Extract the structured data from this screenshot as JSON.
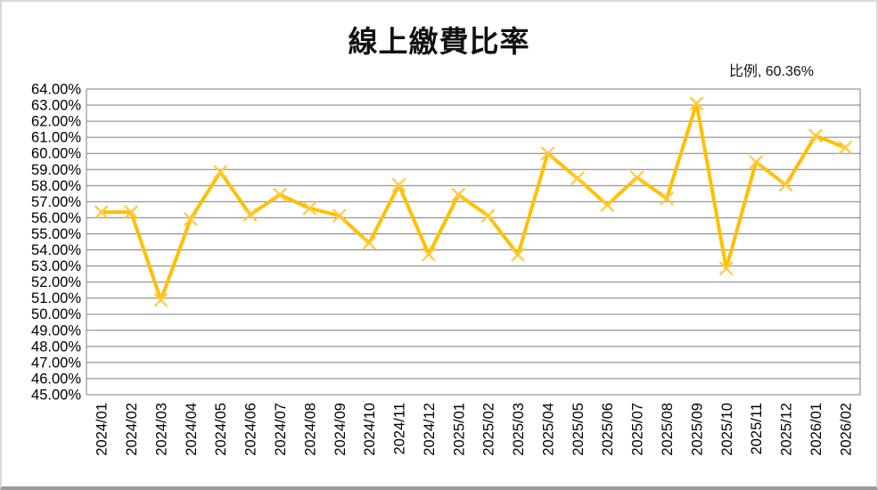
{
  "chart_data": {
    "type": "line",
    "title": "線上繳費比率",
    "series_name": "比例",
    "annotation": "比例, 60.36%",
    "legend_position": "none",
    "grid": true,
    "categories": [
      "2024/01",
      "2024/02",
      "2024/03",
      "2024/04",
      "2024/05",
      "2024/06",
      "2024/07",
      "2024/08",
      "2024/09",
      "2024/10",
      "2024/11",
      "2024/12",
      "2025/01",
      "2025/02",
      "2025/03",
      "2025/04",
      "2025/05",
      "2025/06",
      "2025/07",
      "2025/08",
      "2025/09",
      "2025/10",
      "2025/11",
      "2025/12",
      "2026/01",
      "2026/02"
    ],
    "values": [
      56.35,
      56.35,
      50.89,
      55.92,
      58.85,
      56.19,
      57.43,
      56.59,
      56.13,
      54.43,
      58.04,
      53.72,
      57.43,
      56.13,
      53.7,
      60.0,
      58.45,
      56.8,
      58.5,
      57.2,
      63.1,
      52.85,
      59.46,
      58.05,
      61.1,
      60.36
    ],
    "xlabel": "",
    "ylabel": "",
    "y_axis": {
      "min": 45,
      "max": 64,
      "step": 1,
      "tick_suffix": "%",
      "tick_decimals": 2
    },
    "colors": {
      "line": "#FFC000",
      "marker": "#FFC940",
      "gridline": "#7F7F7F",
      "plot_border": "#7F7F7F",
      "text": "#000000"
    }
  }
}
